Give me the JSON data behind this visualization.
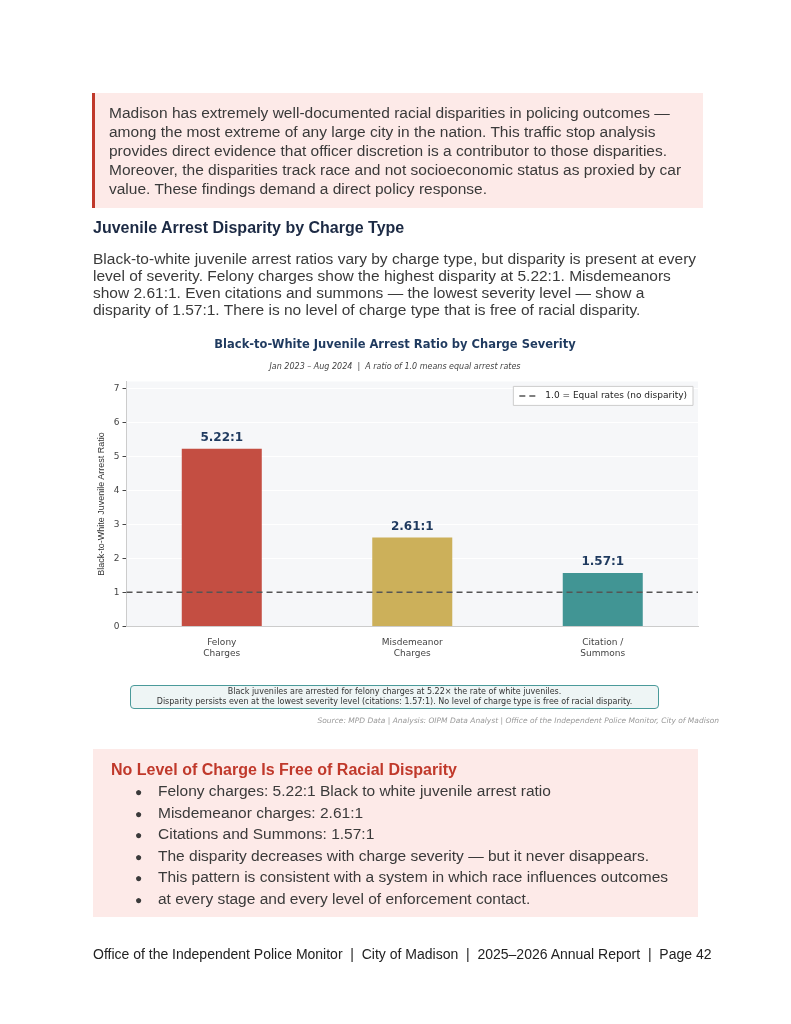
{
  "chart_data": {
    "type": "bar",
    "title": "Black-to-White Juvenile Arrest Ratio by Charge Severity",
    "subtitle": "Jan 2023 – Aug 2024  |  A ratio of 1.0 means equal arrest rates",
    "ylabel": "Black-to-White Juvenile Arrest Ratio",
    "categories": [
      "Felony\nCharges",
      "Misdemeanor\nCharges",
      "Citation /\nSummons"
    ],
    "values": [
      5.22,
      2.61,
      1.57
    ],
    "colors": [
      "#c44e42",
      "#ccb05a",
      "#419594"
    ],
    "value_labels": [
      "5.22:1",
      "2.61:1",
      "1.57:1"
    ],
    "ylim": [
      0,
      7.2
    ],
    "yticks": [
      0,
      1,
      2,
      3,
      4,
      5,
      6,
      7
    ],
    "grid": "y",
    "legend": "top right",
    "ref_lines": [
      {
        "axis": "y",
        "value": 1,
        "label": "1.0 = Equal rates (no disparity)",
        "color": "#555555",
        "line_style": "dashed"
      }
    ],
    "annotations": [
      "Madison has extremely well-documented racial disparities in policing outcomes — among the most extreme of any large city in the nation. This traffic stop analysis provides direct evidence that officer discretion is a contributor to those disparities. Moreover, the disparities track race and not socioeconomic status as proxied by car value. These findings demand a direct policy response.",
      "Juvenile Arrest Disparity by Charge Type",
      "Black-to-white juvenile arrest ratios vary by charge type, but disparity is present at every level of severity. Felony charges show the highest disparity at 5.22:1. Misdemeanors show 2.61:1. Even citations and summons — the lowest severity level — show a disparity of 1.57:1. There is no level of charge type that is free of racial disparity.",
      "Black juveniles are arrested for felony charges at 5.22× the rate of white juveniles.\nDisparity persists even at the lowest severity level (citations: 1.57:1). No level of charge type is free of racial disparity.",
      "Source: MPD Data | Analysis: OIPM Data Analyst | Office of the Independent Police Monitor, City of Madison",
      "No Level of Charge Is Free of Racial Disparity",
      "● Felony charges: 5.22:1 Black to white juvenile arrest ratio",
      "● Misdemeanor charges: 2.61:1",
      "● Citations and Summons: 1.57:1",
      "● The disparity decreases with charge severity — but it never disappears.",
      "● This pattern is consistent with a system in which race influences outcomes",
      "● at every stage and every level of enforcement contact.",
      "Office of the Independent Police Monitor  |  City of Madison  |  2025–2026 Annual Report  |  Page 42"
    ]
  }
}
